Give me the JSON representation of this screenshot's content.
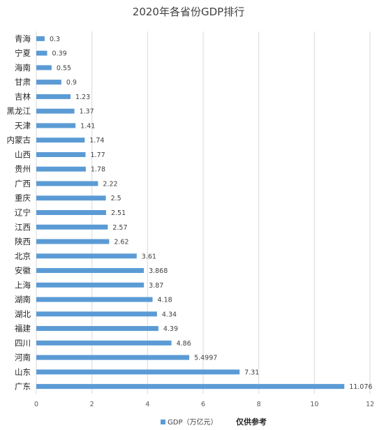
{
  "chart_data": {
    "type": "bar",
    "orientation": "horizontal",
    "title": "2020年各省份GDP排行",
    "categories": [
      "青海",
      "宁夏",
      "海南",
      "甘肃",
      "吉林",
      "黑龙江",
      "天津",
      "内蒙古",
      "山西",
      "贵州",
      "广西",
      "重庆",
      "辽宁",
      "江西",
      "陕西",
      "北京",
      "安徽",
      "上海",
      "湖南",
      "湖北",
      "福建",
      "四川",
      "河南",
      "山东",
      "广东"
    ],
    "values": [
      0.3,
      0.39,
      0.55,
      0.9,
      1.23,
      1.37,
      1.41,
      1.74,
      1.77,
      1.78,
      2.22,
      2.5,
      2.51,
      2.57,
      2.62,
      3.61,
      3.868,
      3.87,
      4.18,
      4.34,
      4.39,
      4.86,
      5.4997,
      7.31,
      11.076
    ],
    "value_labels": [
      "0.3",
      "0.39",
      "0.55",
      "0.9",
      "1.23",
      "1.37",
      "1.41",
      "1.74",
      "1.77",
      "1.78",
      "2.22",
      "2.5",
      "2.51",
      "2.57",
      "2.62",
      "3.61",
      "3.868",
      "3.87",
      "4.18",
      "4.34",
      "4.39",
      "4.86",
      "5.4997",
      "7.31",
      "11.076"
    ],
    "xlim": [
      0,
      12
    ],
    "xticks": [
      "0",
      "2",
      "4",
      "6",
      "8",
      "10",
      "12"
    ],
    "grid": true,
    "series": [
      {
        "name": "GDP（万亿元）",
        "color": "#5b9bd5"
      }
    ],
    "legend_position": "bottom",
    "note": "仅供参考"
  }
}
